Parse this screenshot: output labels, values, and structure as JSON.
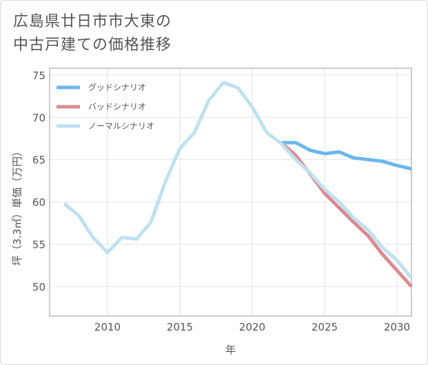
{
  "page": {
    "title_line1": "広島県廿日市市大東の",
    "title_line2": "中古戸建ての価格推移"
  },
  "chart_data": {
    "type": "line",
    "title": "広島県廿日市市大東の中古戸建ての価格推移",
    "xlabel": "年",
    "ylabel": "坪（3.3㎡）単価（万円）",
    "xlim": [
      2006,
      2031
    ],
    "ylim": [
      46.5,
      75.8
    ],
    "xticks": [
      2010,
      2015,
      2020,
      2025,
      2030
    ],
    "yticks": [
      50,
      55,
      60,
      65,
      70,
      75
    ],
    "legend_position": "top-left",
    "series": [
      {
        "name": "グッドシナリオ",
        "color": "#6bb6ec",
        "x": [
          2022,
          2023,
          2024,
          2025,
          2026,
          2027,
          2028,
          2029,
          2030,
          2031
        ],
        "y": [
          67.0,
          67.0,
          66.1,
          65.7,
          65.9,
          65.2,
          65.0,
          64.8,
          64.3,
          63.9
        ]
      },
      {
        "name": "バッドシナリオ",
        "color": "#db8a91",
        "x": [
          2022,
          2023,
          2024,
          2025,
          2026,
          2027,
          2028,
          2029,
          2030,
          2031
        ],
        "y": [
          67.0,
          65.5,
          63.3,
          61.0,
          59.3,
          57.6,
          56.0,
          53.8,
          51.9,
          50.0
        ]
      },
      {
        "name": "ノーマルシナリオ",
        "color": "#bfe0ef",
        "x": [
          2007,
          2008,
          2009,
          2010,
          2011,
          2012,
          2013,
          2014,
          2015,
          2016,
          2017,
          2018,
          2019,
          2020,
          2021,
          2022,
          2023,
          2024,
          2025,
          2026,
          2027,
          2028,
          2029,
          2030,
          2031
        ],
        "y": [
          59.8,
          58.4,
          55.8,
          54.0,
          55.8,
          55.6,
          57.6,
          62.4,
          66.3,
          68.2,
          72.0,
          74.1,
          73.5,
          71.2,
          68.2,
          66.9,
          65.0,
          63.4,
          61.5,
          60.0,
          58.1,
          56.7,
          54.6,
          53.1,
          51.0
        ]
      }
    ]
  }
}
